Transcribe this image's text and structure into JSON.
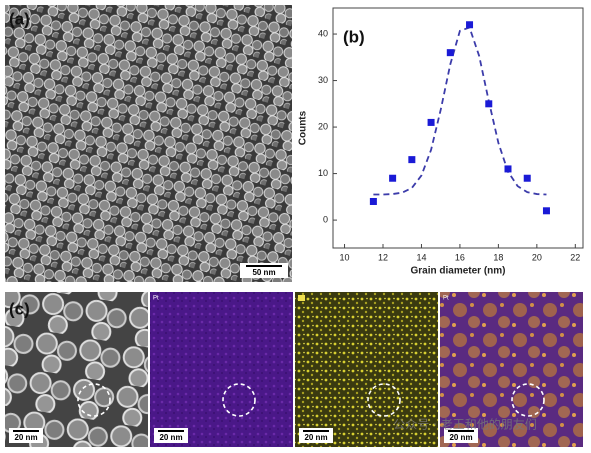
{
  "chart_data": {
    "type": "scatter",
    "label": "(b)",
    "x_label": "Grain diameter (nm)",
    "y_label": "Counts",
    "x": [
      11.5,
      12.5,
      13.5,
      14.5,
      15.5,
      16.5,
      17.5,
      18.5,
      19.5,
      20.5
    ],
    "values": [
      4,
      9,
      13,
      21,
      36,
      42,
      25,
      11,
      9,
      2
    ],
    "color": "#1a1ad6",
    "marker": "square",
    "fit": {
      "x": [
        11.5,
        12,
        12.5,
        13,
        13.5,
        14,
        14.5,
        15,
        15.5,
        16,
        16.5,
        17,
        17.5,
        18,
        18.5,
        19,
        19.5,
        20,
        20.5
      ],
      "values": [
        5.5,
        5.5,
        5.6,
        5.9,
        6.9,
        9.6,
        15.1,
        23.7,
        33.5,
        40.7,
        41.4,
        35.3,
        25.6,
        16.6,
        10.4,
        7.3,
        6.0,
        5.6,
        5.5
      ],
      "color": "#3c3caa",
      "dashed": true
    },
    "xlim": [
      9.4,
      22.4
    ],
    "ylim": [
      -6,
      45.6
    ],
    "xticks": [
      10,
      12,
      14,
      16,
      18,
      20,
      22
    ],
    "yticks": [
      0,
      10,
      20,
      30,
      40
    ]
  },
  "figure": {
    "panel_labels": [
      "(a)",
      "(c)"
    ],
    "scale_bars": [
      "50 nm",
      "20 nm",
      "20 nm",
      "20 nm",
      "20 nm"
    ],
    "map_labels": [
      "Pt",
      "Pt"
    ],
    "watermark": "公众号 · 老王和他的朋友们"
  }
}
